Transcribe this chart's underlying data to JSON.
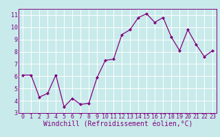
{
  "x": [
    0,
    1,
    2,
    3,
    4,
    5,
    6,
    7,
    8,
    9,
    10,
    11,
    12,
    13,
    14,
    15,
    16,
    17,
    18,
    19,
    20,
    21,
    22,
    23
  ],
  "y": [
    6.1,
    6.1,
    4.3,
    4.6,
    6.1,
    3.5,
    4.2,
    3.7,
    3.8,
    5.9,
    7.3,
    7.4,
    9.4,
    9.8,
    10.8,
    11.1,
    10.4,
    10.8,
    9.2,
    8.1,
    9.8,
    8.6,
    7.6,
    8.1
  ],
  "line_color": "#800080",
  "marker_color": "#800080",
  "bg_color": "#c8eaea",
  "grid_color": "#ffffff",
  "xlabel": "Windchill (Refroidissement éolien,°C)",
  "xlim": [
    -0.5,
    23.5
  ],
  "ylim": [
    3,
    11.5
  ],
  "yticks": [
    3,
    4,
    5,
    6,
    7,
    8,
    9,
    10,
    11
  ],
  "xticks": [
    0,
    1,
    2,
    3,
    4,
    5,
    6,
    7,
    8,
    9,
    10,
    11,
    12,
    13,
    14,
    15,
    16,
    17,
    18,
    19,
    20,
    21,
    22,
    23
  ],
  "tick_fontsize": 6,
  "xlabel_fontsize": 7
}
